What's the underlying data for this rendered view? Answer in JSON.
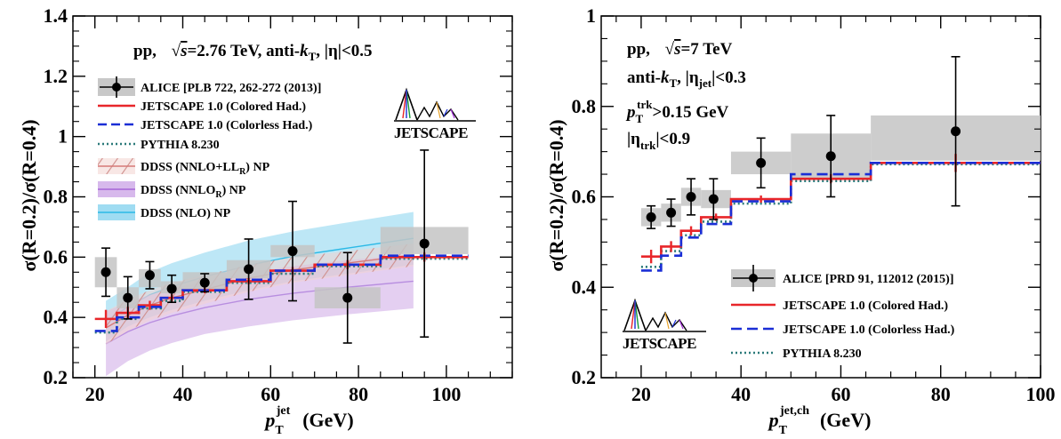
{
  "chart_data": [
    {
      "type": "line",
      "title": "pp, √s=2.76 TeV, anti-kT, |η|<0.5",
      "annotation": {
        "prefix": "pp,",
        "sqrt": "√",
        "s_text": "s",
        "energy": "=2.76 TeV, anti-",
        "k": "k",
        "kT_sub": "T",
        "eta_part": ", |η|<0.5"
      },
      "xlabel": {
        "p": "p",
        "sub": "T",
        "sup": "jet",
        "units": "(GeV)"
      },
      "ylabel": {
        "text": "σ(R=0.2)/σ(R=0.4)"
      },
      "xlim": [
        15,
        115
      ],
      "ylim": [
        0.2,
        1.4
      ],
      "xticks": [
        "20",
        "40",
        "60",
        "80",
        "100"
      ],
      "yticks": [
        "0.2",
        "0.4",
        "0.6",
        "0.8",
        "1",
        "1.2",
        "1.4"
      ],
      "logo_text": "JETSCAPE",
      "legend_position": "upper-left",
      "legend": [
        "ALICE [PLB 722, 262-272 (2013)]",
        "JETSCAPE 1.0 (Colored Had.)",
        "JETSCAPE 1.0 (Colorless Had.)",
        "PYTHIA 8.230",
        "DDSS (NNLO+LLR) NP",
        "DDSS (NNLOR) NP",
        "DDSS (NLO) NP"
      ],
      "ddss_labels": {
        "nnlo_ll": {
          "a": "DDSS (NNLO+LL",
          "sub": "R",
          "b": ") NP"
        },
        "nnlo": {
          "a": "DDSS (NNLO",
          "sub": "R",
          "b": ") NP"
        },
        "nlo": "DDSS (NLO) NP"
      },
      "alice": {
        "x": [
          22.5,
          27.5,
          32.5,
          37.5,
          45,
          55,
          65,
          77.5,
          95
        ],
        "y": [
          0.55,
          0.465,
          0.54,
          0.495,
          0.515,
          0.56,
          0.62,
          0.465,
          0.645
        ],
        "err": [
          0.08,
          0.07,
          0.045,
          0.045,
          0.03,
          0.1,
          0.165,
          0.15,
          0.31
        ],
        "sys_lo": [
          0.5,
          0.43,
          0.5,
          0.48,
          0.49,
          0.53,
          0.6,
          0.43,
          0.61
        ],
        "sys_hi": [
          0.6,
          0.5,
          0.56,
          0.52,
          0.55,
          0.59,
          0.64,
          0.5,
          0.7
        ],
        "bin_edges": [
          [
            20,
            25
          ],
          [
            25,
            30
          ],
          [
            30,
            35
          ],
          [
            35,
            40
          ],
          [
            40,
            50
          ],
          [
            50,
            60
          ],
          [
            60,
            70
          ],
          [
            70,
            85
          ],
          [
            85,
            105
          ]
        ]
      },
      "jetscape_colored": {
        "edges": [
          20,
          25,
          30,
          35,
          40,
          50,
          60,
          70,
          85,
          105
        ],
        "y": [
          0.395,
          0.415,
          0.44,
          0.465,
          0.49,
          0.52,
          0.555,
          0.575,
          0.6
        ],
        "err": [
          0.03,
          0.02,
          0.015,
          0.012,
          0.01,
          0.01,
          0.012,
          0.015,
          0.015
        ],
        "color": "#e8262a"
      },
      "jetscape_colorless": {
        "edges": [
          20,
          25,
          30,
          35,
          40,
          50,
          60,
          70,
          85,
          105
        ],
        "y": [
          0.355,
          0.4,
          0.435,
          0.465,
          0.49,
          0.525,
          0.555,
          0.575,
          0.605
        ],
        "color": "#1a2ed6"
      },
      "pythia": {
        "edges": [
          20,
          25,
          30,
          35,
          40,
          50,
          60,
          70,
          85,
          105
        ],
        "y": [
          0.35,
          0.395,
          0.43,
          0.455,
          0.485,
          0.515,
          0.545,
          0.57,
          0.595
        ],
        "color": "#2b7a7a"
      },
      "ddss_nlo": {
        "x": [
          22.5,
          27.5,
          32.5,
          37.5,
          45,
          55,
          65,
          77.5,
          92.5
        ],
        "lo": [
          0.32,
          0.37,
          0.4,
          0.425,
          0.455,
          0.49,
          0.52,
          0.545,
          0.575
        ],
        "hi": [
          0.455,
          0.5,
          0.55,
          0.58,
          0.615,
          0.655,
          0.685,
          0.715,
          0.75
        ],
        "color": "#2bb9e6"
      },
      "ddss_nnlo_ll": {
        "x": [
          22.5,
          27.5,
          32.5,
          37.5,
          45,
          55,
          65,
          77.5,
          92.5
        ],
        "lo": [
          0.31,
          0.355,
          0.39,
          0.415,
          0.445,
          0.485,
          0.515,
          0.54,
          0.57
        ],
        "hi": [
          0.42,
          0.46,
          0.49,
          0.515,
          0.54,
          0.575,
          0.6,
          0.62,
          0.645
        ],
        "color": "#d67a78"
      },
      "ddss_nnlo": {
        "x": [
          22.5,
          27.5,
          32.5,
          37.5,
          45,
          55,
          65,
          77.5,
          92.5
        ],
        "lo": [
          0.205,
          0.255,
          0.29,
          0.315,
          0.345,
          0.37,
          0.39,
          0.41,
          0.43
        ],
        "hi": [
          0.42,
          0.45,
          0.475,
          0.495,
          0.52,
          0.55,
          0.57,
          0.59,
          0.61
        ],
        "color": "#b88ee0"
      }
    },
    {
      "type": "line",
      "title": "pp, √s=7 TeV",
      "annotation": {
        "prefix": "pp,",
        "sqrt": "√",
        "s_text": "s",
        "energy": "=7 TeV",
        "line2_a": "anti-",
        "k": "k",
        "kT_sub": "T",
        "line2_b": ", |η",
        "eta_sub": "jet",
        "line2_c": "|<0.3",
        "line3_p": "p",
        "line3_sub": "T",
        "line3_sup": "trk",
        "line3_b": ">0.15 GeV",
        "line4_a": "|η",
        "line4_sub": "trk",
        "line4_b": "|<0.9"
      },
      "xlabel": {
        "p": "p",
        "sub": "T",
        "sup": "jet,ch",
        "units": "(GeV)"
      },
      "ylabel": {
        "text": "σ(R=0.2)/σ(R=0.4)"
      },
      "xlim": [
        12,
        100
      ],
      "ylim": [
        0.2,
        1.0
      ],
      "xticks": [
        "20",
        "40",
        "60",
        "80",
        "100"
      ],
      "yticks": [
        "0.2",
        "0.4",
        "0.6",
        "0.8",
        "1"
      ],
      "logo_text": "JETSCAPE",
      "legend_position": "lower-right",
      "legend": [
        "ALICE [PRD 91, 112012 (2015)]",
        "JETSCAPE 1.0 (Colored Had.)",
        "JETSCAPE 1.0 (Colorless Had.)",
        "PYTHIA 8.230"
      ],
      "alice": {
        "x": [
          22,
          26,
          30,
          34.5,
          44,
          58,
          83
        ],
        "y": [
          0.555,
          0.565,
          0.6,
          0.595,
          0.675,
          0.69,
          0.745
        ],
        "err": [
          0.025,
          0.03,
          0.04,
          0.045,
          0.055,
          0.09,
          0.165
        ],
        "sys_lo": [
          0.535,
          0.545,
          0.58,
          0.575,
          0.65,
          0.64,
          0.68
        ],
        "sys_hi": [
          0.575,
          0.585,
          0.62,
          0.615,
          0.7,
          0.74,
          0.78
        ],
        "bin_edges": [
          [
            20,
            24
          ],
          [
            24,
            28
          ],
          [
            28,
            32
          ],
          [
            32,
            38
          ],
          [
            38,
            50
          ],
          [
            50,
            66
          ],
          [
            66,
            100
          ]
        ]
      },
      "jetscape_colored": {
        "edges": [
          20,
          24,
          28,
          32,
          38,
          50,
          66,
          100
        ],
        "y": [
          0.468,
          0.49,
          0.525,
          0.555,
          0.595,
          0.64,
          0.675
        ],
        "err": [
          0.015,
          0.012,
          0.01,
          0.008,
          0.008,
          0.01,
          0.02
        ],
        "color": "#e8262a"
      },
      "jetscape_colorless": {
        "edges": [
          20,
          24,
          28,
          32,
          38,
          50,
          66,
          100
        ],
        "y": [
          0.437,
          0.47,
          0.51,
          0.54,
          0.59,
          0.65,
          0.675
        ],
        "color": "#1a2ed6"
      },
      "pythia": {
        "edges": [
          20,
          24,
          28,
          32,
          38,
          50,
          66,
          100
        ],
        "y": [
          0.445,
          0.48,
          0.515,
          0.545,
          0.585,
          0.635,
          0.672
        ],
        "color": "#2b7a7a"
      }
    }
  ]
}
